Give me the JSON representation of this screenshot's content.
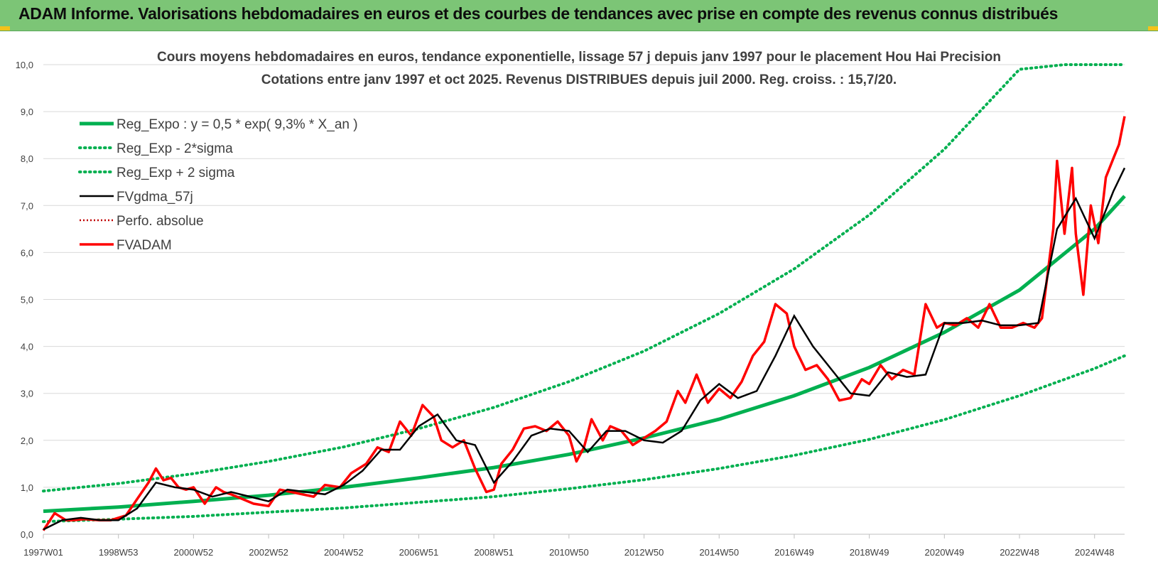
{
  "banner": {
    "title": "ADAM Informe. Valorisations hebdomadaires en euros et des courbes de tendances avec prise en compte des revenus connus distribués"
  },
  "colors": {
    "banner_bg": "#7cc576",
    "green": "#00b050",
    "black": "#000000",
    "red": "#ff0000",
    "dotred": "#c00000"
  },
  "chart_data": {
    "type": "line",
    "title_line1": "Cours moyens hebdomadaires en euros, tendance exponentielle, lissage 57 j depuis janv 1997 pour le placement Hou Hai Precision",
    "title_line2": "Cotations entre janv 1997 et oct 2025. Revenus DISTRIBUES depuis juil 2000. Reg. croiss. : 15,7/20.",
    "xlim": [
      1997.0,
      2025.8
    ],
    "ylim": [
      0,
      10
    ],
    "y_ticks": [
      "0,0",
      "1,0",
      "2,0",
      "3,0",
      "4,0",
      "5,0",
      "6,0",
      "7,0",
      "8,0",
      "9,0",
      "10,0"
    ],
    "x_ticks": [
      {
        "x": 1997.0,
        "label": "1997W01"
      },
      {
        "x": 1999.0,
        "label": "1998W53"
      },
      {
        "x": 2001.0,
        "label": "2000W52"
      },
      {
        "x": 2003.0,
        "label": "2002W52"
      },
      {
        "x": 2005.0,
        "label": "2004W52"
      },
      {
        "x": 2007.0,
        "label": "2006W51"
      },
      {
        "x": 2009.0,
        "label": "2008W51"
      },
      {
        "x": 2011.0,
        "label": "2010W50"
      },
      {
        "x": 2013.0,
        "label": "2012W50"
      },
      {
        "x": 2015.0,
        "label": "2014W50"
      },
      {
        "x": 2017.0,
        "label": "2016W49"
      },
      {
        "x": 2019.0,
        "label": "2018W49"
      },
      {
        "x": 2021.0,
        "label": "2020W49"
      },
      {
        "x": 2023.0,
        "label": "2022W48"
      },
      {
        "x": 2025.0,
        "label": "2024W48"
      }
    ],
    "grid": "horizontal",
    "legend_position": "top-left",
    "legend": [
      {
        "label": "Reg_Expo : y = 0,5 * exp( 9,3% *  X_an )",
        "style": "solid-green"
      },
      {
        "label": "Reg_Exp - 2*sigma",
        "style": "dotted-green"
      },
      {
        "label": "Reg_Exp + 2 sigma",
        "style": "dotted-green"
      },
      {
        "label": "FVgdma_57j",
        "style": "solid-black"
      },
      {
        "label": "Perfo. absolue",
        "style": "dotted-red"
      },
      {
        "label": "FVADAM",
        "style": "solid-red"
      }
    ],
    "series": [
      {
        "name": "Reg_Expo : y = 0,5 * exp( 9,3% *  X_an )",
        "x": [
          1997.0,
          1999.0,
          2001.0,
          2003.0,
          2005.0,
          2007.0,
          2009.0,
          2011.0,
          2013.0,
          2015.0,
          2017.0,
          2019.0,
          2021.0,
          2023.0,
          2025.0,
          2025.8
        ],
        "values": [
          0.49,
          0.58,
          0.7,
          0.83,
          1.0,
          1.2,
          1.42,
          1.7,
          2.05,
          2.45,
          2.95,
          3.55,
          4.3,
          5.2,
          6.5,
          7.2
        ]
      },
      {
        "name": "Reg_Exp - 2*sigma",
        "x": [
          1997.0,
          1999.0,
          2001.0,
          2003.0,
          2005.0,
          2007.0,
          2009.0,
          2011.0,
          2013.0,
          2015.0,
          2017.0,
          2019.0,
          2021.0,
          2023.0,
          2025.0,
          2025.8
        ],
        "values": [
          0.27,
          0.32,
          0.38,
          0.47,
          0.56,
          0.68,
          0.8,
          0.97,
          1.16,
          1.4,
          1.68,
          2.02,
          2.44,
          2.95,
          3.53,
          3.8
        ]
      },
      {
        "name": "Reg_Exp + 2 sigma",
        "x": [
          1997.0,
          1999.0,
          2001.0,
          2003.0,
          2005.0,
          2007.0,
          2009.0,
          2011.0,
          2013.0,
          2015.0,
          2017.0,
          2019.0,
          2021.0,
          2023.0,
          2024.2,
          2025.8
        ],
        "values": [
          0.92,
          1.08,
          1.29,
          1.55,
          1.86,
          2.25,
          2.7,
          3.25,
          3.9,
          4.7,
          5.65,
          6.8,
          8.2,
          9.9,
          10.0,
          10.0
        ]
      },
      {
        "name": "FVgdma_57j",
        "x": [
          1997.0,
          1997.5,
          1998.0,
          1998.5,
          1999.0,
          1999.5,
          2000.0,
          2000.5,
          2001.0,
          2001.5,
          2002.0,
          2002.5,
          2003.0,
          2003.5,
          2004.0,
          2004.5,
          2005.0,
          2005.5,
          2006.0,
          2006.5,
          2007.0,
          2007.5,
          2008.0,
          2008.5,
          2009.0,
          2009.5,
          2010.0,
          2010.5,
          2011.0,
          2011.5,
          2012.0,
          2012.5,
          2013.0,
          2013.5,
          2014.0,
          2014.5,
          2015.0,
          2015.5,
          2016.0,
          2016.5,
          2017.0,
          2017.5,
          2018.0,
          2018.5,
          2019.0,
          2019.5,
          2020.0,
          2020.5,
          2021.0,
          2021.5,
          2022.0,
          2022.5,
          2023.0,
          2023.5,
          2024.0,
          2024.5,
          2025.0,
          2025.5,
          2025.8
        ],
        "values": [
          0.1,
          0.3,
          0.35,
          0.3,
          0.3,
          0.55,
          1.1,
          1.0,
          0.95,
          0.8,
          0.9,
          0.8,
          0.7,
          0.95,
          0.9,
          0.85,
          1.05,
          1.35,
          1.8,
          1.8,
          2.3,
          2.55,
          2.0,
          1.9,
          1.1,
          1.55,
          2.1,
          2.25,
          2.2,
          1.75,
          2.2,
          2.2,
          2.0,
          1.95,
          2.2,
          2.85,
          3.2,
          2.9,
          3.05,
          3.8,
          4.65,
          4.0,
          3.5,
          3.0,
          2.95,
          3.45,
          3.35,
          3.4,
          4.5,
          4.5,
          4.55,
          4.45,
          4.45,
          4.5,
          6.5,
          7.15,
          6.3,
          7.3,
          7.8
        ]
      },
      {
        "name": "FVADAM",
        "x": [
          1997.0,
          1997.3,
          1997.6,
          1997.8,
          1998.1,
          1998.5,
          1998.8,
          1999.2,
          1999.5,
          1999.8,
          2000.0,
          2000.2,
          2000.4,
          2000.6,
          2000.8,
          2001.0,
          2001.3,
          2001.6,
          2001.8,
          2002.0,
          2002.3,
          2002.6,
          2003.0,
          2003.3,
          2003.6,
          2003.9,
          2004.2,
          2004.5,
          2004.9,
          2005.2,
          2005.6,
          2005.9,
          2006.2,
          2006.5,
          2006.8,
          2007.1,
          2007.4,
          2007.6,
          2007.9,
          2008.2,
          2008.5,
          2008.8,
          2009.0,
          2009.2,
          2009.5,
          2009.8,
          2010.1,
          2010.4,
          2010.7,
          2011.0,
          2011.2,
          2011.4,
          2011.6,
          2011.9,
          2012.1,
          2012.4,
          2012.7,
          2013.0,
          2013.3,
          2013.6,
          2013.9,
          2014.1,
          2014.4,
          2014.7,
          2015.0,
          2015.3,
          2015.6,
          2015.9,
          2016.2,
          2016.5,
          2016.8,
          2017.0,
          2017.3,
          2017.6,
          2017.9,
          2018.2,
          2018.5,
          2018.8,
          2019.0,
          2019.3,
          2019.6,
          2019.9,
          2020.2,
          2020.5,
          2020.8,
          2021.0,
          2021.3,
          2021.6,
          2021.9,
          2022.2,
          2022.5,
          2022.8,
          2023.1,
          2023.4,
          2023.6,
          2023.9,
          2024.0,
          2024.2,
          2024.4,
          2024.5,
          2024.7,
          2024.9,
          2025.1,
          2025.3,
          2025.5,
          2025.65,
          2025.8
        ],
        "values": [
          0.08,
          0.45,
          0.3,
          0.3,
          0.32,
          0.3,
          0.3,
          0.4,
          0.75,
          1.1,
          1.4,
          1.15,
          1.2,
          1.0,
          0.95,
          1.0,
          0.65,
          1.0,
          0.9,
          0.85,
          0.75,
          0.65,
          0.6,
          0.95,
          0.9,
          0.85,
          0.8,
          1.05,
          1.0,
          1.3,
          1.5,
          1.85,
          1.75,
          2.4,
          2.1,
          2.75,
          2.5,
          2.0,
          1.85,
          2.0,
          1.4,
          0.9,
          0.95,
          1.5,
          1.8,
          2.25,
          2.3,
          2.2,
          2.4,
          2.1,
          1.55,
          1.85,
          2.45,
          2.0,
          2.3,
          2.2,
          1.9,
          2.05,
          2.2,
          2.4,
          3.05,
          2.8,
          3.4,
          2.8,
          3.1,
          2.9,
          3.25,
          3.8,
          4.1,
          4.9,
          4.7,
          4.0,
          3.5,
          3.6,
          3.3,
          2.85,
          2.9,
          3.3,
          3.2,
          3.6,
          3.3,
          3.5,
          3.4,
          4.9,
          4.4,
          4.5,
          4.45,
          4.6,
          4.4,
          4.9,
          4.4,
          4.4,
          4.5,
          4.4,
          4.6,
          6.5,
          7.95,
          6.4,
          7.8,
          6.4,
          5.1,
          7.0,
          6.2,
          7.6,
          8.0,
          8.3,
          8.9
        ]
      }
    ]
  }
}
